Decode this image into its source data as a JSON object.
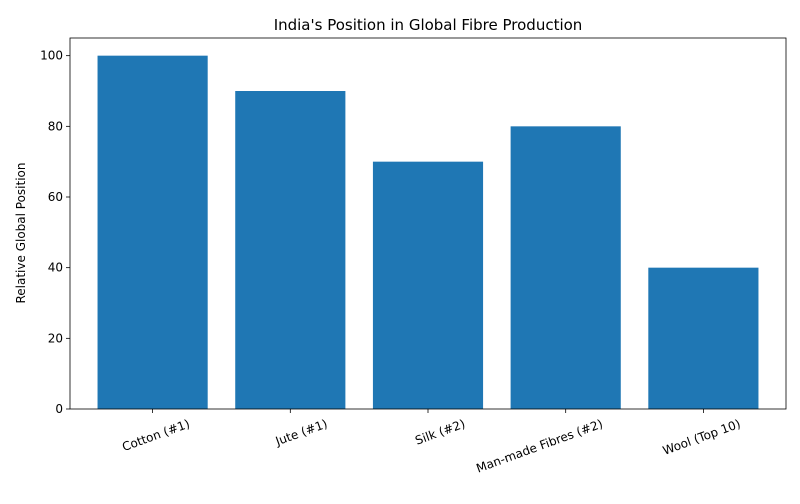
{
  "chart_data": {
    "type": "bar",
    "title": "India's Position in Global Fibre Production",
    "xlabel": "",
    "ylabel": "Relative Global Position",
    "categories": [
      "Cotton (#1)",
      "Jute (#1)",
      "Silk (#2)",
      "Man-made Fibres (#2)",
      "Wool (Top 10)"
    ],
    "values": [
      100,
      90,
      70,
      80,
      40
    ],
    "ylim": [
      0,
      105
    ],
    "yticks": [
      0,
      20,
      40,
      60,
      80,
      100
    ],
    "bar_color": "#1f77b4",
    "grid": false,
    "legend": "none"
  }
}
